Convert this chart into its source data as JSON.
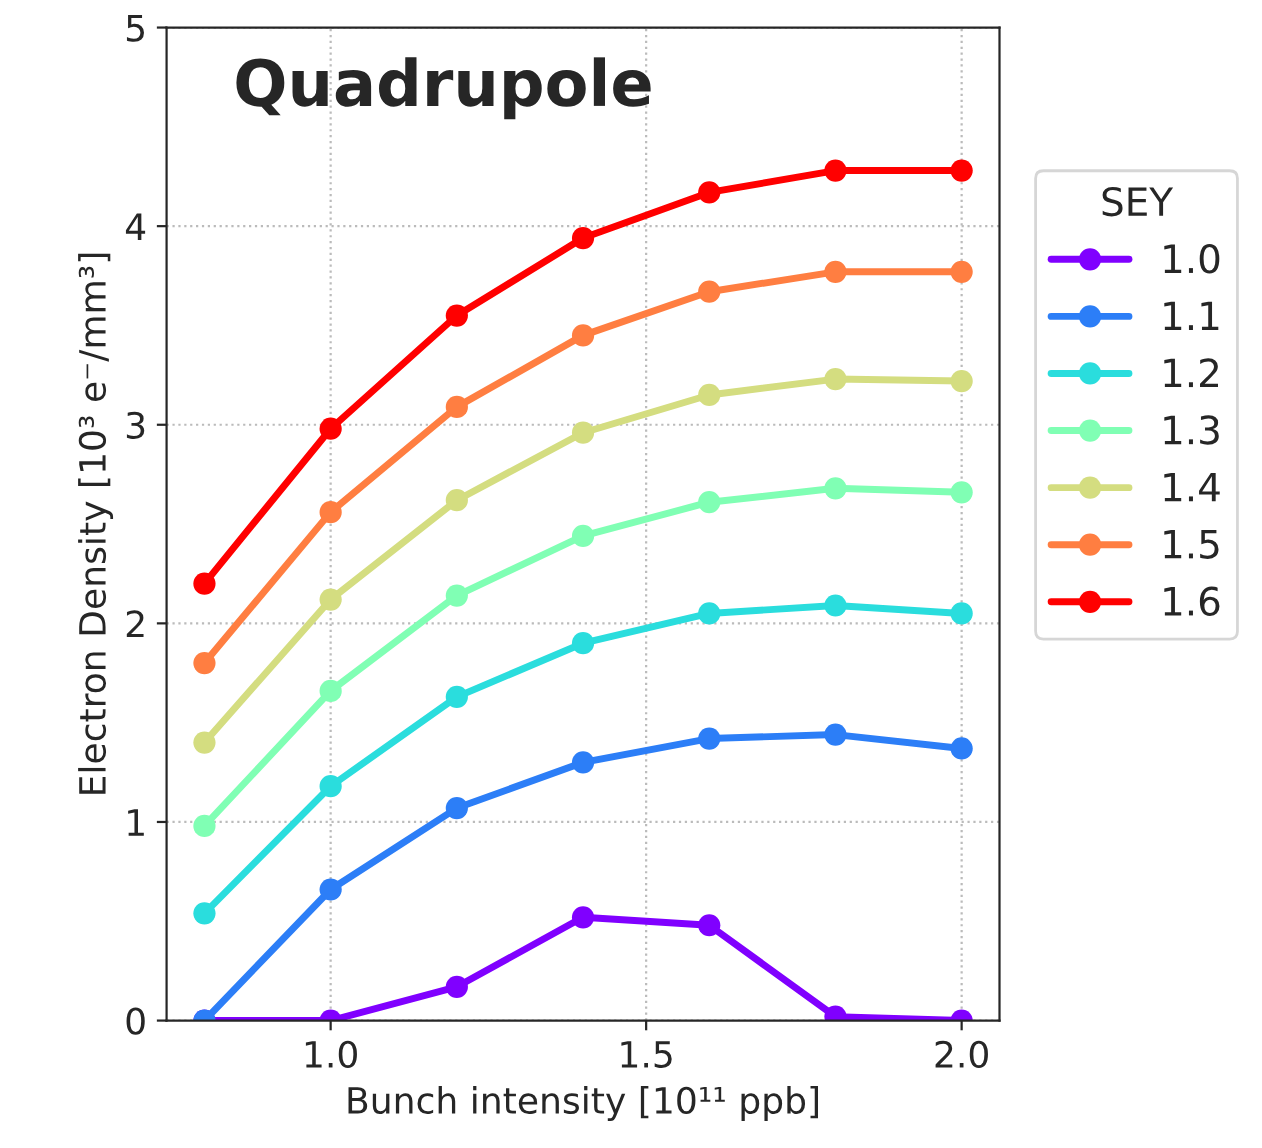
{
  "chart_data": {
    "type": "line",
    "title": "Quadrupole",
    "xlabel": "Bunch intensity [10¹¹ ppb]",
    "ylabel": "Electron Density [10³ e⁻/mm³]",
    "legend_title": "SEY",
    "x": [
      0.8,
      1.0,
      1.2,
      1.4,
      1.6,
      1.8,
      2.0
    ],
    "series": [
      {
        "name": "1.0",
        "color": "#8000ff",
        "values": [
          0,
          0,
          0.17,
          0.52,
          0.48,
          0.02,
          0
        ]
      },
      {
        "name": "1.1",
        "color": "#2c7ef7",
        "values": [
          0,
          0.66,
          1.07,
          1.3,
          1.42,
          1.44,
          1.37
        ]
      },
      {
        "name": "1.2",
        "color": "#2adddd",
        "values": [
          0.54,
          1.18,
          1.63,
          1.9,
          2.05,
          2.09,
          2.05
        ]
      },
      {
        "name": "1.3",
        "color": "#80ffb4",
        "values": [
          0.98,
          1.66,
          2.14,
          2.44,
          2.61,
          2.68,
          2.66
        ]
      },
      {
        "name": "1.4",
        "color": "#d4dd80",
        "values": [
          1.4,
          2.12,
          2.62,
          2.96,
          3.15,
          3.23,
          3.22
        ]
      },
      {
        "name": "1.5",
        "color": "#ff7e41",
        "values": [
          1.8,
          2.56,
          3.09,
          3.45,
          3.67,
          3.77,
          3.77
        ]
      },
      {
        "name": "1.6",
        "color": "#ff0000",
        "values": [
          2.2,
          2.98,
          3.55,
          3.94,
          4.17,
          4.28,
          4.28
        ]
      }
    ],
    "xlim": [
      0.74,
      2.06
    ],
    "ylim": [
      0,
      5
    ],
    "xticks": [
      {
        "value": 1.0,
        "label": "1.0"
      },
      {
        "value": 1.5,
        "label": "1.5"
      },
      {
        "value": 2.0,
        "label": "2.0"
      }
    ],
    "yticks": [
      0,
      1,
      2,
      3,
      4,
      5
    ],
    "grid": true,
    "legend": "right",
    "marker": "circle",
    "line_style": "solid"
  }
}
